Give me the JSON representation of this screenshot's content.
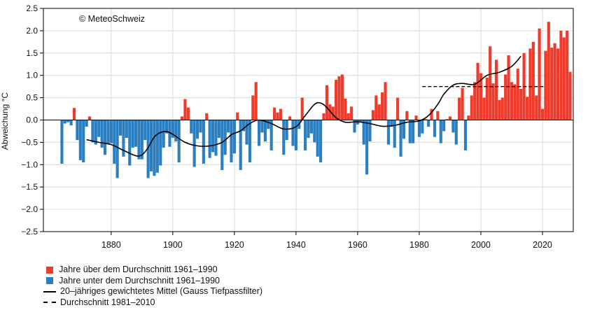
{
  "chart_data": {
    "type": "bar",
    "copyright": "© MeteoSchweiz",
    "ylabel": "Abweichung °C",
    "xlabel": "",
    "ylim": [
      -2.5,
      2.5
    ],
    "yticks": [
      2.5,
      2.0,
      1.5,
      1.0,
      0.5,
      0.0,
      -0.5,
      -1.0,
      -1.5,
      -2.0,
      -2.5
    ],
    "ytick_labels": [
      "2.5",
      "2.0",
      "1.5",
      "1.0",
      "0.5",
      "0.0",
      "−0.5",
      "−1.0",
      "−1.5",
      "−2.0",
      "−2.5"
    ],
    "xlim": [
      1858,
      2030
    ],
    "xticks": [
      1880,
      1900,
      1920,
      1940,
      1960,
      1980,
      2000,
      2020
    ],
    "xtick_labels": [
      "1880",
      "1900",
      "1920",
      "1940",
      "1960",
      "1980",
      "2000",
      "2020"
    ],
    "grid": true,
    "colors": {
      "above": "#ef3b2c",
      "below": "#2b7fc1"
    },
    "series": [
      {
        "name": "Jahre über/unter dem Durchschnitt 1961–1990",
        "x_start": 1864,
        "values": [
          -0.98,
          -0.08,
          -0.05,
          -0.12,
          0.27,
          -0.45,
          -0.9,
          -0.95,
          -0.15,
          0.08,
          -0.5,
          -0.55,
          -0.38,
          -0.62,
          -0.78,
          -0.55,
          -0.52,
          -0.98,
          -1.3,
          -0.35,
          -0.82,
          -0.4,
          -1.02,
          -0.62,
          -0.6,
          -0.88,
          -0.88,
          -0.45,
          -1.3,
          -1.15,
          -1.25,
          -1.18,
          -1.02,
          -0.62,
          -0.3,
          -0.6,
          -0.4,
          -0.48,
          -0.95,
          0.08,
          0.47,
          0.28,
          -0.3,
          -1.05,
          -0.42,
          -0.28,
          -0.98,
          0.15,
          -0.85,
          -0.72,
          -0.8,
          -0.4,
          -1.12,
          -0.78,
          -0.28,
          -0.95,
          -0.75,
          0.17,
          -1.12,
          -0.25,
          -0.55,
          -0.95,
          0.55,
          0.85,
          -0.58,
          -0.28,
          -0.48,
          -0.2,
          -0.68,
          0.28,
          0.17,
          0.25,
          -0.78,
          -0.45,
          0.08,
          -0.58,
          -0.68,
          -0.2,
          0.5,
          -0.68,
          -0.4,
          -0.3,
          -0.5,
          -0.82,
          -0.95,
          0.15,
          0.78,
          0.35,
          0.3,
          0.9,
          0.98,
          1.02,
          0.48,
          0.15,
          0.3,
          -0.28,
          -0.1,
          -0.05,
          -0.55,
          -1.22,
          -0.48,
          0.22,
          0.55,
          0.35,
          0.62,
          0.85,
          -0.55,
          -0.15,
          -0.62,
          0.5,
          -0.82,
          -0.42,
          0.2,
          -0.52,
          -0.52,
          0.1,
          -0.38,
          -0.3,
          0.02,
          -0.15,
          0.25,
          -0.38,
          0.2,
          -0.52,
          -0.25,
          0.02,
          0.08,
          -0.28,
          -0.55,
          0.5,
          0.72,
          -0.68,
          0.1,
          0.55,
          0.85,
          1.28,
          1.05,
          0.5,
          0.95,
          1.65,
          0.82,
          1.35,
          0.45,
          0.5,
          1.02,
          1.45,
          0.85,
          0.8,
          1.15,
          0.7,
          1.5,
          0.52,
          1.6,
          1.75,
          0.55,
          2.05,
          0.25,
          1.55,
          2.2,
          1.62,
          1.72,
          1.6,
          2.0,
          1.85,
          2.0,
          1.08
        ]
      },
      {
        "name": "20–jähriges gewichtetes Mittel (Gauss Tiefpassfilter)",
        "x": [
          1872,
          1876,
          1880,
          1884,
          1888,
          1890,
          1892,
          1894,
          1896,
          1898,
          1900,
          1904,
          1908,
          1912,
          1916,
          1919,
          1922,
          1925,
          1928,
          1932,
          1936,
          1940,
          1943,
          1946,
          1948,
          1950,
          1953,
          1956,
          1960,
          1964,
          1968,
          1972,
          1976,
          1980,
          1983,
          1986,
          1988,
          1991,
          1994,
          1998,
          2002,
          2006,
          2010,
          2013
        ],
        "values": [
          -0.44,
          -0.5,
          -0.55,
          -0.68,
          -0.8,
          -0.78,
          -0.62,
          -0.38,
          -0.28,
          -0.26,
          -0.32,
          -0.5,
          -0.58,
          -0.58,
          -0.5,
          -0.33,
          -0.24,
          -0.08,
          0.0,
          -0.08,
          -0.2,
          -0.15,
          0.1,
          0.35,
          0.38,
          0.28,
          0.05,
          -0.05,
          -0.04,
          -0.08,
          -0.14,
          -0.12,
          -0.05,
          -0.02,
          0.1,
          0.35,
          0.58,
          0.78,
          0.82,
          0.8,
          1.0,
          1.07,
          1.2,
          1.43
        ]
      },
      {
        "name": "Durchschnitt 1981–2010",
        "x": [
          1981,
          2021
        ],
        "values": [
          0.75,
          0.75
        ]
      }
    ],
    "legend": [
      {
        "label": "Jahre über dem Durchschnitt 1961–1990",
        "symbol": "box",
        "color": "#ef3b2c"
      },
      {
        "label": "Jahre unter dem Durchschnitt 1961–1990",
        "symbol": "box",
        "color": "#2b7fc1"
      },
      {
        "label": "20–jähriges gewichtetes Mittel (Gauss Tiefpassfilter)",
        "symbol": "line"
      },
      {
        "label": "Durchschnitt 1981–2010",
        "symbol": "dashed"
      }
    ]
  }
}
